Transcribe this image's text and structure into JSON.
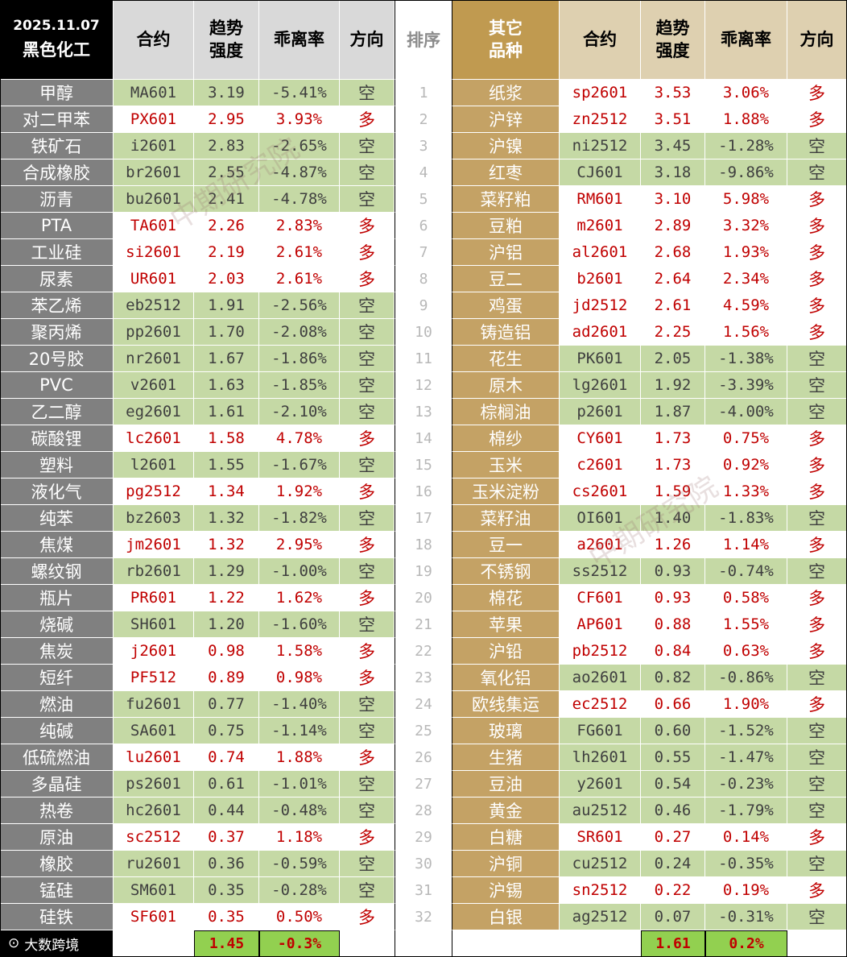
{
  "header": {
    "date": "2025.11.07",
    "left_category": "黑色化工",
    "contract": "合约",
    "trend_l1": "趋势",
    "trend_l2": "强度",
    "deviation": "乖离率",
    "direction": "方向",
    "rank": "排序",
    "right_category_l1": "其它",
    "right_category_l2": "品种"
  },
  "left_rows": [
    {
      "name": "甲醇",
      "code": "MA601",
      "trend": "3.19",
      "dev": "-5.41%",
      "dir": "空"
    },
    {
      "name": "对二甲苯",
      "code": "PX601",
      "trend": "2.95",
      "dev": "3.93%",
      "dir": "多"
    },
    {
      "name": "铁矿石",
      "code": "i2601",
      "trend": "2.83",
      "dev": "-2.65%",
      "dir": "空"
    },
    {
      "name": "合成橡胶",
      "code": "br2601",
      "trend": "2.55",
      "dev": "-4.87%",
      "dir": "空"
    },
    {
      "name": "沥青",
      "code": "bu2601",
      "trend": "2.41",
      "dev": "-4.78%",
      "dir": "空"
    },
    {
      "name": "PTA",
      "code": "TA601",
      "trend": "2.26",
      "dev": "2.83%",
      "dir": "多"
    },
    {
      "name": "工业硅",
      "code": "si2601",
      "trend": "2.19",
      "dev": "2.61%",
      "dir": "多"
    },
    {
      "name": "尿素",
      "code": "UR601",
      "trend": "2.03",
      "dev": "2.61%",
      "dir": "多"
    },
    {
      "name": "苯乙烯",
      "code": "eb2512",
      "trend": "1.91",
      "dev": "-2.56%",
      "dir": "空"
    },
    {
      "name": "聚丙烯",
      "code": "pp2601",
      "trend": "1.70",
      "dev": "-2.08%",
      "dir": "空"
    },
    {
      "name": "20号胶",
      "code": "nr2601",
      "trend": "1.67",
      "dev": "-1.86%",
      "dir": "空"
    },
    {
      "name": "PVC",
      "code": "v2601",
      "trend": "1.63",
      "dev": "-1.85%",
      "dir": "空"
    },
    {
      "name": "乙二醇",
      "code": "eg2601",
      "trend": "1.61",
      "dev": "-2.10%",
      "dir": "空"
    },
    {
      "name": "碳酸锂",
      "code": "lc2601",
      "trend": "1.58",
      "dev": "4.78%",
      "dir": "多"
    },
    {
      "name": "塑料",
      "code": "l2601",
      "trend": "1.55",
      "dev": "-1.67%",
      "dir": "空"
    },
    {
      "name": "液化气",
      "code": "pg2512",
      "trend": "1.34",
      "dev": "1.92%",
      "dir": "多"
    },
    {
      "name": "纯苯",
      "code": "bz2603",
      "trend": "1.32",
      "dev": "-1.82%",
      "dir": "空"
    },
    {
      "name": "焦煤",
      "code": "jm2601",
      "trend": "1.32",
      "dev": "2.95%",
      "dir": "多"
    },
    {
      "name": "螺纹钢",
      "code": "rb2601",
      "trend": "1.29",
      "dev": "-1.00%",
      "dir": "空"
    },
    {
      "name": "瓶片",
      "code": "PR601",
      "trend": "1.22",
      "dev": "1.62%",
      "dir": "多"
    },
    {
      "name": "烧碱",
      "code": "SH601",
      "trend": "1.20",
      "dev": "-1.60%",
      "dir": "空"
    },
    {
      "name": "焦炭",
      "code": "j2601",
      "trend": "0.98",
      "dev": "1.58%",
      "dir": "多"
    },
    {
      "name": "短纤",
      "code": "PF512",
      "trend": "0.89",
      "dev": "0.98%",
      "dir": "多"
    },
    {
      "name": "燃油",
      "code": "fu2601",
      "trend": "0.77",
      "dev": "-1.40%",
      "dir": "空"
    },
    {
      "name": "纯碱",
      "code": "SA601",
      "trend": "0.75",
      "dev": "-1.14%",
      "dir": "空"
    },
    {
      "name": "低硫燃油",
      "code": "lu2601",
      "trend": "0.74",
      "dev": "1.88%",
      "dir": "多"
    },
    {
      "name": "多晶硅",
      "code": "ps2601",
      "trend": "0.61",
      "dev": "-1.01%",
      "dir": "空"
    },
    {
      "name": "热卷",
      "code": "hc2601",
      "trend": "0.44",
      "dev": "-0.48%",
      "dir": "空"
    },
    {
      "name": "原油",
      "code": "sc2512",
      "trend": "0.37",
      "dev": "1.18%",
      "dir": "多"
    },
    {
      "name": "橡胶",
      "code": "ru2601",
      "trend": "0.36",
      "dev": "-0.59%",
      "dir": "空"
    },
    {
      "name": "锰硅",
      "code": "SM601",
      "trend": "0.35",
      "dev": "-0.28%",
      "dir": "空"
    },
    {
      "name": "硅铁",
      "code": "SF601",
      "trend": "0.35",
      "dev": "0.50%",
      "dir": "多"
    }
  ],
  "right_rows": [
    {
      "name": "纸浆",
      "code": "sp2601",
      "trend": "3.53",
      "dev": "3.06%",
      "dir": "多"
    },
    {
      "name": "沪锌",
      "code": "zn2512",
      "trend": "3.51",
      "dev": "1.88%",
      "dir": "多"
    },
    {
      "name": "沪镍",
      "code": "ni2512",
      "trend": "3.45",
      "dev": "-1.28%",
      "dir": "空"
    },
    {
      "name": "红枣",
      "code": "CJ601",
      "trend": "3.18",
      "dev": "-9.86%",
      "dir": "空"
    },
    {
      "name": "菜籽粕",
      "code": "RM601",
      "trend": "3.10",
      "dev": "5.98%",
      "dir": "多"
    },
    {
      "name": "豆粕",
      "code": "m2601",
      "trend": "2.89",
      "dev": "3.32%",
      "dir": "多"
    },
    {
      "name": "沪铝",
      "code": "al2601",
      "trend": "2.68",
      "dev": "1.93%",
      "dir": "多"
    },
    {
      "name": "豆二",
      "code": "b2601",
      "trend": "2.64",
      "dev": "2.34%",
      "dir": "多"
    },
    {
      "name": "鸡蛋",
      "code": "jd2512",
      "trend": "2.61",
      "dev": "4.59%",
      "dir": "多"
    },
    {
      "name": "铸造铝",
      "code": "ad2601",
      "trend": "2.25",
      "dev": "1.56%",
      "dir": "多"
    },
    {
      "name": "花生",
      "code": "PK601",
      "trend": "2.05",
      "dev": "-1.38%",
      "dir": "空"
    },
    {
      "name": "原木",
      "code": "lg2601",
      "trend": "1.92",
      "dev": "-3.39%",
      "dir": "空"
    },
    {
      "name": "棕榈油",
      "code": "p2601",
      "trend": "1.87",
      "dev": "-4.00%",
      "dir": "空"
    },
    {
      "name": "棉纱",
      "code": "CY601",
      "trend": "1.73",
      "dev": "0.75%",
      "dir": "多"
    },
    {
      "name": "玉米",
      "code": "c2601",
      "trend": "1.73",
      "dev": "0.92%",
      "dir": "多"
    },
    {
      "name": "玉米淀粉",
      "code": "cs2601",
      "trend": "1.59",
      "dev": "1.33%",
      "dir": "多"
    },
    {
      "name": "菜籽油",
      "code": "OI601",
      "trend": "1.40",
      "dev": "-1.83%",
      "dir": "空"
    },
    {
      "name": "豆一",
      "code": "a2601",
      "trend": "1.26",
      "dev": "1.14%",
      "dir": "多"
    },
    {
      "name": "不锈钢",
      "code": "ss2512",
      "trend": "0.93",
      "dev": "-0.74%",
      "dir": "空"
    },
    {
      "name": "棉花",
      "code": "CF601",
      "trend": "0.93",
      "dev": "0.58%",
      "dir": "多"
    },
    {
      "name": "苹果",
      "code": "AP601",
      "trend": "0.88",
      "dev": "1.55%",
      "dir": "多"
    },
    {
      "name": "沪铅",
      "code": "pb2512",
      "trend": "0.84",
      "dev": "0.63%",
      "dir": "多"
    },
    {
      "name": "氧化铝",
      "code": "ao2601",
      "trend": "0.82",
      "dev": "-0.86%",
      "dir": "空"
    },
    {
      "name": "欧线集运",
      "code": "ec2512",
      "trend": "0.66",
      "dev": "1.90%",
      "dir": "多"
    },
    {
      "name": "玻璃",
      "code": "FG601",
      "trend": "0.60",
      "dev": "-1.52%",
      "dir": "空"
    },
    {
      "name": "生猪",
      "code": "lh2601",
      "trend": "0.55",
      "dev": "-1.47%",
      "dir": "空"
    },
    {
      "name": "豆油",
      "code": "y2601",
      "trend": "0.54",
      "dev": "-0.23%",
      "dir": "空"
    },
    {
      "name": "黄金",
      "code": "au2512",
      "trend": "0.46",
      "dev": "-1.79%",
      "dir": "空"
    },
    {
      "name": "白糖",
      "code": "SR601",
      "trend": "0.27",
      "dev": "0.14%",
      "dir": "多"
    },
    {
      "name": "沪铜",
      "code": "cu2512",
      "trend": "0.24",
      "dev": "-0.35%",
      "dir": "空"
    },
    {
      "name": "沪锡",
      "code": "sn2512",
      "trend": "0.22",
      "dev": "0.19%",
      "dir": "多"
    },
    {
      "name": "白银",
      "code": "ag2512",
      "trend": "0.07",
      "dev": "-0.31%",
      "dir": "空"
    }
  ],
  "summary": {
    "logo": "大数跨境",
    "left_trend": "1.45",
    "left_dev": "-0.3%",
    "right_trend": "1.61",
    "right_dev": "0.2%"
  },
  "watermark": "中期研究院",
  "colors": {
    "short_bg": "#c5d9a5",
    "long_text": "#c00000",
    "left_name_bg": "#808080",
    "right_name_bg": "#c4a265",
    "summary_bg": "#92d050"
  }
}
